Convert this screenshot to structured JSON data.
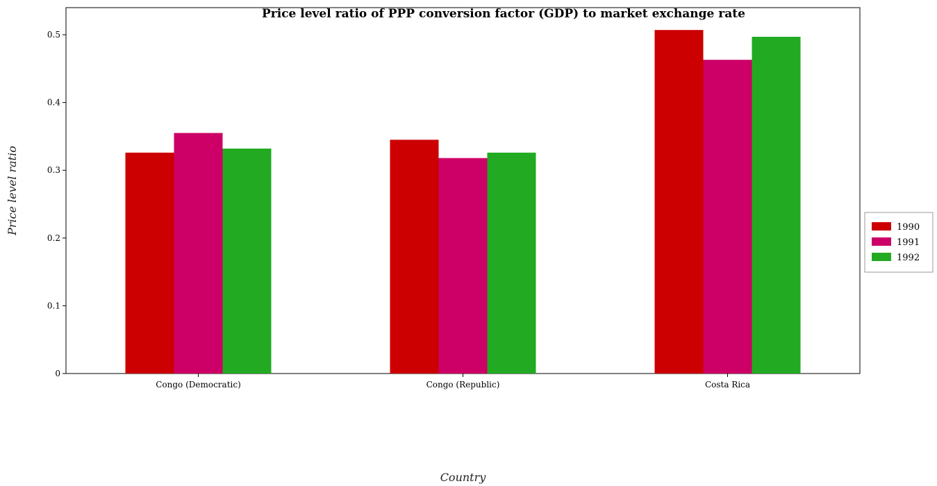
{
  "chart_data": {
    "type": "bar",
    "title": "Price level ratio of PPP conversion factor (GDP) to market exchange rate",
    "xlabel": "Country",
    "ylabel": "Price level ratio",
    "categories": [
      "Congo (Democratic)",
      "Congo (Republic)",
      "Costa Rica"
    ],
    "series": [
      {
        "name": "1990",
        "color": "#cc0000",
        "values": [
          0.326,
          0.345,
          0.507
        ]
      },
      {
        "name": "1991",
        "color": "#cc0066",
        "values": [
          0.355,
          0.318,
          0.463
        ]
      },
      {
        "name": "1992",
        "color": "#22aa22",
        "values": [
          0.332,
          0.326,
          0.497
        ]
      }
    ],
    "yticks": [
      "0",
      "0.1",
      "0.2",
      "0.3",
      "0.4",
      "0.5"
    ],
    "ylim": [
      0,
      0.54
    ],
    "grid": false,
    "legend_position": "right"
  }
}
